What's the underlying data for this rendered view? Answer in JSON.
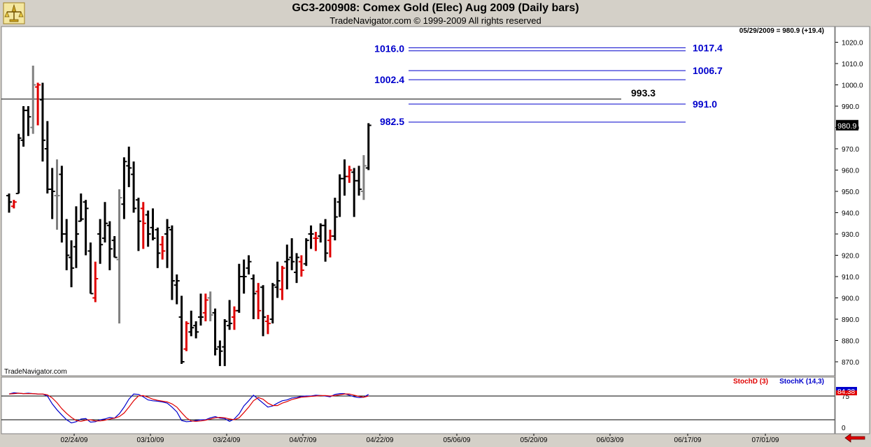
{
  "header": {
    "title": "GC3-200908:  Comex Gold (Elec) Aug 2009  (Daily bars)",
    "copyright": "TradeNavigator.com © 1999-2009 All rights reserved",
    "last_quote": "05/29/2009 = 980.9 (+19.4)",
    "watermark": "TradeNavigator.com"
  },
  "colors": {
    "up_bar": "#000000",
    "down_bar": "#e00000",
    "neutral_bar": "#808080",
    "fib_line": "#0000cc",
    "price_line": "#000000",
    "stoch_d": "#e00000",
    "stoch_k": "#0000cc",
    "current_price_bg": "#000000",
    "stoch_badge_bg": "#e00000",
    "panel_bg": "#ffffff",
    "frame_bg": "#d4d0c8",
    "alert_arrow": "#e00000"
  },
  "icons": {
    "logo": "trading-scale-logo-icon",
    "alert": "red-left-arrow-icon"
  },
  "chart_data": [
    {
      "type": "ohlc",
      "title": "GC3-200908:  Comex Gold (Elec) Aug 2009  (Daily bars)",
      "y_ticks": [
        "870.0",
        "880.0",
        "890.0",
        "900.0",
        "910.0",
        "920.0",
        "930.0",
        "940.0",
        "950.0",
        "960.0",
        "970.0",
        "980.0",
        "990.0",
        "1000.0",
        "1010.0",
        "1020.0"
      ],
      "ylim": [
        865,
        1024
      ],
      "x_tick_labels": [
        "02/24/09",
        "03/10/09",
        "03/24/09",
        "04/07/09",
        "04/22/09",
        "05/06/09",
        "05/20/09",
        "06/03/09",
        "06/17/09",
        "07/01/09"
      ],
      "current_price_label": "980.9",
      "level_lines": [
        {
          "label": "1016.0",
          "value": 1016.0
        },
        {
          "label": "1017.4",
          "value": 1017.4
        },
        {
          "label": "1006.7",
          "value": 1006.7
        },
        {
          "label": "1002.4",
          "value": 1002.4
        },
        {
          "label": "993.3",
          "value": 993.3
        },
        {
          "label": "991.0",
          "value": 991.0
        },
        {
          "label": "982.5",
          "value": 982.5
        }
      ],
      "bars": [
        {
          "o": 948,
          "h": 949,
          "l": 940,
          "c": 945,
          "s": "u"
        },
        {
          "o": 943,
          "h": 946,
          "l": 942,
          "c": 945,
          "s": "d"
        },
        {
          "o": 949,
          "h": 977,
          "l": 949,
          "c": 975,
          "s": "u"
        },
        {
          "o": 974,
          "h": 990,
          "l": 971,
          "c": 988,
          "s": "u"
        },
        {
          "o": 988,
          "h": 990,
          "l": 976,
          "c": 985,
          "s": "u"
        },
        {
          "o": 980,
          "h": 1009,
          "l": 977,
          "c": 1000,
          "s": "n"
        },
        {
          "o": 999,
          "h": 1001,
          "l": 981,
          "c": 1000,
          "s": "d"
        },
        {
          "o": 993,
          "h": 1001,
          "l": 964,
          "c": 974,
          "s": "u"
        },
        {
          "o": 970,
          "h": 983,
          "l": 949,
          "c": 951,
          "s": "u"
        },
        {
          "o": 951,
          "h": 961,
          "l": 937,
          "c": 950,
          "s": "u"
        },
        {
          "o": 948,
          "h": 965,
          "l": 932,
          "c": 948,
          "s": "n"
        },
        {
          "o": 958,
          "h": 962,
          "l": 926,
          "c": 930,
          "s": "u"
        },
        {
          "o": 930,
          "h": 937,
          "l": 913,
          "c": 920,
          "s": "u"
        },
        {
          "o": 919,
          "h": 927,
          "l": 905,
          "c": 914,
          "s": "u"
        },
        {
          "o": 924,
          "h": 943,
          "l": 914,
          "c": 930,
          "s": "u"
        },
        {
          "o": 936,
          "h": 949,
          "l": 936,
          "c": 937,
          "s": "u"
        },
        {
          "o": 945,
          "h": 946,
          "l": 920,
          "c": 942,
          "s": "u"
        },
        {
          "o": 922,
          "h": 926,
          "l": 902,
          "c": 902,
          "s": "u"
        },
        {
          "o": 900,
          "h": 917,
          "l": 898,
          "c": 909,
          "s": "d"
        },
        {
          "o": 930,
          "h": 937,
          "l": 916,
          "c": 925,
          "s": "u"
        },
        {
          "o": 928,
          "h": 945,
          "l": 926,
          "c": 935,
          "s": "u"
        },
        {
          "o": 934,
          "h": 936,
          "l": 913,
          "c": 923,
          "s": "u"
        },
        {
          "o": 927,
          "h": 929,
          "l": 919,
          "c": 919,
          "s": "u"
        },
        {
          "o": 918,
          "h": 951,
          "l": 888,
          "c": 947,
          "s": "n"
        },
        {
          "o": 944,
          "h": 966,
          "l": 937,
          "c": 964,
          "s": "u"
        },
        {
          "o": 962,
          "h": 971,
          "l": 952,
          "c": 961,
          "s": "u"
        },
        {
          "o": 958,
          "h": 964,
          "l": 940,
          "c": 942,
          "s": "u"
        },
        {
          "o": 946,
          "h": 947,
          "l": 922,
          "c": 936,
          "s": "u"
        },
        {
          "o": 942,
          "h": 945,
          "l": 923,
          "c": 935,
          "s": "d"
        },
        {
          "o": 939,
          "h": 941,
          "l": 924,
          "c": 930,
          "s": "u"
        },
        {
          "o": 933,
          "h": 942,
          "l": 927,
          "c": 928,
          "s": "u"
        },
        {
          "o": 932,
          "h": 933,
          "l": 914,
          "c": 921,
          "s": "u"
        },
        {
          "o": 925,
          "h": 929,
          "l": 918,
          "c": 922,
          "s": "d"
        },
        {
          "o": 930,
          "h": 937,
          "l": 914,
          "c": 933,
          "s": "u"
        },
        {
          "o": 932,
          "h": 934,
          "l": 899,
          "c": 908,
          "s": "u"
        },
        {
          "o": 906,
          "h": 911,
          "l": 897,
          "c": 908,
          "s": "u"
        },
        {
          "o": 891,
          "h": 901,
          "l": 869,
          "c": 870,
          "s": "u"
        },
        {
          "o": 876,
          "h": 889,
          "l": 875,
          "c": 888,
          "s": "d"
        },
        {
          "o": 884,
          "h": 894,
          "l": 882,
          "c": 886,
          "s": "u"
        },
        {
          "o": 887,
          "h": 889,
          "l": 881,
          "c": 884,
          "s": "u"
        },
        {
          "o": 891,
          "h": 902,
          "l": 887,
          "c": 891,
          "s": "u"
        },
        {
          "o": 893,
          "h": 902,
          "l": 889,
          "c": 899,
          "s": "d"
        },
        {
          "o": 900,
          "h": 903,
          "l": 889,
          "c": 892,
          "s": "n"
        },
        {
          "o": 893,
          "h": 895,
          "l": 873,
          "c": 876,
          "s": "u"
        },
        {
          "o": 877,
          "h": 880,
          "l": 868,
          "c": 875,
          "s": "u"
        },
        {
          "o": 877,
          "h": 890,
          "l": 868,
          "c": 889,
          "s": "u"
        },
        {
          "o": 887,
          "h": 899,
          "l": 885,
          "c": 888,
          "s": "u"
        },
        {
          "o": 891,
          "h": 896,
          "l": 885,
          "c": 894,
          "s": "d"
        },
        {
          "o": 894,
          "h": 916,
          "l": 893,
          "c": 910,
          "s": "u"
        },
        {
          "o": 910,
          "h": 918,
          "l": 902,
          "c": 910,
          "s": "u"
        },
        {
          "o": 914,
          "h": 920,
          "l": 911,
          "c": 917,
          "s": "u"
        },
        {
          "o": 909,
          "h": 911,
          "l": 890,
          "c": 902,
          "s": "u"
        },
        {
          "o": 903,
          "h": 907,
          "l": 890,
          "c": 894,
          "s": "d"
        },
        {
          "o": 905,
          "h": 906,
          "l": 882,
          "c": 891,
          "s": "u"
        },
        {
          "o": 889,
          "h": 892,
          "l": 883,
          "c": 888,
          "s": "d"
        },
        {
          "o": 890,
          "h": 907,
          "l": 888,
          "c": 906,
          "s": "u"
        },
        {
          "o": 905,
          "h": 917,
          "l": 900,
          "c": 908,
          "s": "u"
        },
        {
          "o": 904,
          "h": 915,
          "l": 899,
          "c": 914,
          "s": "d"
        },
        {
          "o": 917,
          "h": 925,
          "l": 904,
          "c": 918,
          "s": "u"
        },
        {
          "o": 919,
          "h": 928,
          "l": 913,
          "c": 917,
          "s": "u"
        },
        {
          "o": 912,
          "h": 921,
          "l": 907,
          "c": 919,
          "s": "u"
        },
        {
          "o": 917,
          "h": 920,
          "l": 910,
          "c": 913,
          "s": "d"
        },
        {
          "o": 916,
          "h": 928,
          "l": 915,
          "c": 927,
          "s": "u"
        },
        {
          "o": 930,
          "h": 934,
          "l": 923,
          "c": 930,
          "s": "u"
        },
        {
          "o": 928,
          "h": 931,
          "l": 922,
          "c": 928,
          "s": "d"
        },
        {
          "o": 929,
          "h": 935,
          "l": 926,
          "c": 934,
          "s": "u"
        },
        {
          "o": 934,
          "h": 937,
          "l": 917,
          "c": 921,
          "s": "u"
        },
        {
          "o": 927,
          "h": 932,
          "l": 919,
          "c": 929,
          "s": "d"
        },
        {
          "o": 929,
          "h": 947,
          "l": 927,
          "c": 938,
          "s": "u"
        },
        {
          "o": 945,
          "h": 958,
          "l": 938,
          "c": 956,
          "s": "u"
        },
        {
          "o": 956,
          "h": 965,
          "l": 948,
          "c": 957,
          "s": "u"
        },
        {
          "o": 957,
          "h": 962,
          "l": 954,
          "c": 960,
          "s": "d"
        },
        {
          "o": 959,
          "h": 961,
          "l": 938,
          "c": 955,
          "s": "u"
        },
        {
          "o": 955,
          "h": 962,
          "l": 948,
          "c": 951,
          "s": "u"
        },
        {
          "o": 950,
          "h": 967,
          "l": 946,
          "c": 962,
          "s": "n"
        },
        {
          "o": 961,
          "h": 982,
          "l": 960,
          "c": 981,
          "s": "u"
        }
      ],
      "stochastic": {
        "series": [
          {
            "name": "StochD (3)"
          },
          {
            "name": "StochK (14,3)"
          }
        ],
        "current_value_label": "84.38",
        "levels": [
          80,
          20
        ],
        "y_tick_labels": [
          "75",
          "0"
        ],
        "ylim": [
          -5,
          100
        ],
        "k": [
          85,
          88,
          87,
          86,
          87,
          86,
          85,
          85,
          80,
          60,
          45,
          32,
          20,
          12,
          15,
          22,
          23,
          14,
          15,
          20,
          22,
          26,
          24,
          35,
          52,
          72,
          85,
          84,
          78,
          70,
          68,
          67,
          65,
          62,
          52,
          40,
          18,
          15,
          16,
          18,
          20,
          20,
          25,
          28,
          24,
          23,
          16,
          22,
          35,
          55,
          68,
          82,
          72,
          62,
          52,
          55,
          62,
          68,
          70,
          75,
          76,
          79,
          80,
          80,
          82,
          81,
          80,
          78,
          84,
          86,
          86,
          82,
          78,
          76,
          77,
          84
        ],
        "d": [
          85,
          86,
          87,
          86,
          86,
          86,
          85,
          85,
          83,
          75,
          63,
          48,
          36,
          26,
          18,
          16,
          19,
          20,
          17,
          17,
          19,
          22,
          24,
          28,
          37,
          52,
          68,
          80,
          81,
          77,
          72,
          69,
          67,
          65,
          60,
          52,
          38,
          25,
          17,
          16,
          17,
          19,
          22,
          25,
          26,
          25,
          22,
          20,
          25,
          38,
          52,
          68,
          76,
          72,
          62,
          56,
          56,
          62,
          66,
          71,
          74,
          77,
          78,
          79,
          80,
          81,
          81,
          80,
          81,
          83,
          85,
          85,
          82,
          79,
          77,
          80
        ]
      }
    }
  ]
}
